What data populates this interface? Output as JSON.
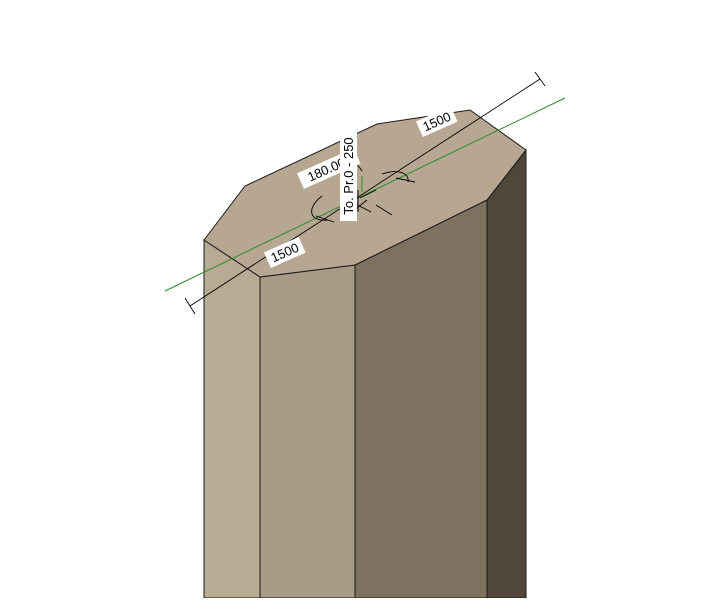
{
  "model": {
    "element": "octagonal column",
    "colors": {
      "top_face": "#b6a692",
      "left_face": "#b9aa94",
      "front_left_face": "#a89a85",
      "front_right_face": "#7d7260",
      "right_face": "#504738",
      "edge": "#1a1a1a",
      "reference_line": "#2e8b2e",
      "background": "#ffffff"
    }
  },
  "annotations": {
    "dimension_left": "1500",
    "dimension_right": "1500",
    "angle": "180.00°",
    "offset": "To. Pr.0 - 250"
  }
}
